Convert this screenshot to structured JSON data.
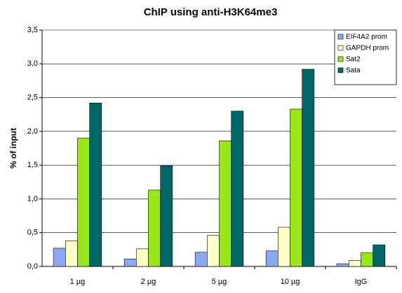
{
  "chart_data": {
    "type": "bar",
    "title": "ChIP using anti-H3K64me3",
    "y_label": "% of input",
    "categories": [
      "1 µg",
      "2 µg",
      "5 µg",
      "10 µg",
      "IgG"
    ],
    "series": [
      {
        "name": "EIF4A2 prom",
        "color": "#8ba9f2",
        "values": [
          0.27,
          0.11,
          0.21,
          0.23,
          0.04
        ]
      },
      {
        "name": "GAPDH prom",
        "color": "#ffffc8",
        "values": [
          0.38,
          0.26,
          0.46,
          0.58,
          0.09
        ]
      },
      {
        "name": "Sat2",
        "color": "#99e619",
        "values": [
          1.9,
          1.13,
          1.86,
          2.33,
          0.2
        ]
      },
      {
        "name": "Sata",
        "color": "#006666",
        "values": [
          2.42,
          1.49,
          2.3,
          2.92,
          0.32
        ]
      }
    ],
    "ylim": [
      0,
      3.5
    ],
    "yticks": [
      {
        "value": 0,
        "label": "0,0"
      },
      {
        "value": 0.5,
        "label": "0,5"
      },
      {
        "value": 1,
        "label": "1,0"
      },
      {
        "value": 1.5,
        "label": "1,5"
      },
      {
        "value": 2,
        "label": "2,0"
      },
      {
        "value": 2.5,
        "label": "2,5"
      },
      {
        "value": 3,
        "label": "3,0"
      },
      {
        "value": 3.5,
        "label": "3,5"
      }
    ],
    "grid": true,
    "legend": "top-right"
  }
}
